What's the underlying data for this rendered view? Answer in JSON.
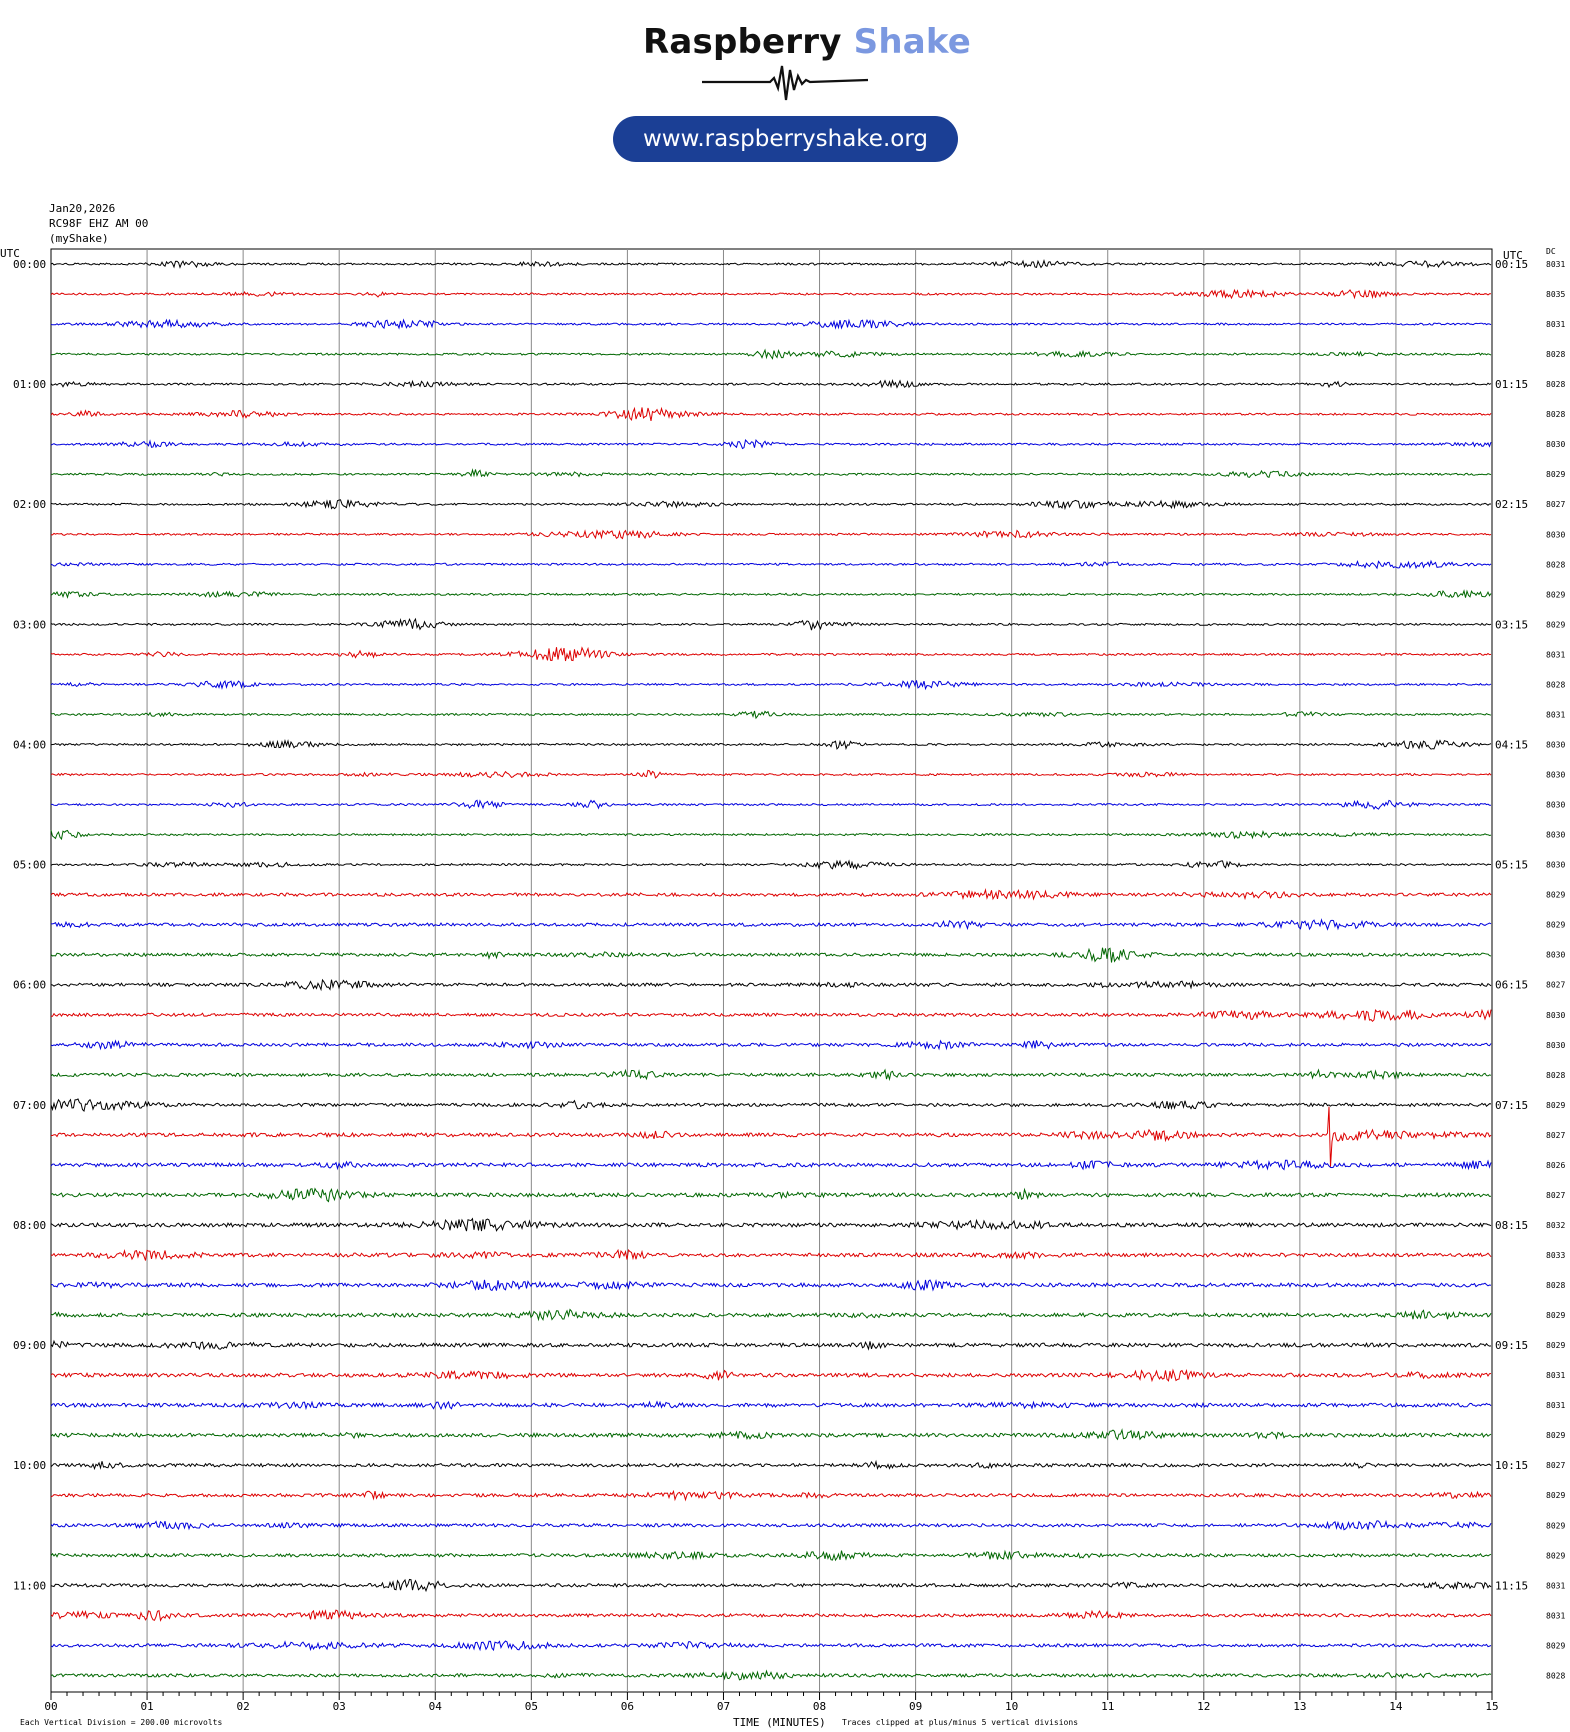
{
  "brand": {
    "name_dark": "Raspberry",
    "name_light": "Shake",
    "url": "www.raspberryshake.org",
    "accent_dark": "#111111",
    "accent_light": "#7b98e0",
    "pill_color": "#1b3f95"
  },
  "header": {
    "date": "Jan20,2026",
    "station": "RC98F EHZ AM 00",
    "source": "(myShake)"
  },
  "chart_data": {
    "type": "line",
    "title": "",
    "xlabel": "TIME (MINUTES)",
    "ylabel": "",
    "x_ticks": [
      "00",
      "01",
      "02",
      "03",
      "04",
      "05",
      "06",
      "07",
      "08",
      "09",
      "10",
      "11",
      "12",
      "13",
      "14",
      "15"
    ],
    "xlim": [
      0,
      15
    ],
    "left_header": "UTC",
    "right_header": "UTC",
    "dc_header": "DC",
    "left_labels": [
      "00:00",
      "01:00",
      "02:00",
      "03:00",
      "04:00",
      "05:00",
      "06:00",
      "07:00",
      "08:00",
      "09:00",
      "10:00",
      "11:00"
    ],
    "right_labels": [
      "00:15",
      "01:15",
      "02:15",
      "03:15",
      "04:15",
      "05:15",
      "06:15",
      "07:15",
      "08:15",
      "09:15",
      "10:15",
      "11:15"
    ],
    "dc_values": [
      "8031",
      "8035",
      "8031",
      "8028",
      "8028",
      "8028",
      "8030",
      "8029",
      "8027",
      "8030",
      "8028",
      "8029",
      "8029",
      "8031",
      "8028",
      "8031",
      "8030",
      "8030",
      "8030",
      "8030",
      "8030",
      "8029",
      "8029",
      "8030",
      "8027",
      "8030",
      "8030",
      "8028",
      "8029",
      "8027",
      "8026",
      "8027",
      "8032",
      "8033",
      "8028",
      "8029",
      "8029",
      "8031",
      "8031",
      "8029",
      "8027",
      "8029",
      "8029",
      "8029",
      "8031",
      "8031",
      "8029",
      "8028"
    ],
    "trace_colors": [
      "#000000",
      "#dd0000",
      "#0000dd",
      "#006600"
    ],
    "trace_minutes": 15,
    "grid": true,
    "footer_left": "Each Vertical Division =  200.00 microvolts",
    "footer_right": "Traces clipped at plus/minus 5 vertical divisions",
    "notable_events": [
      {
        "trace": 29,
        "minute": 13.3,
        "amplitude_divisions": 2.0,
        "label": "07:15 red trace spike"
      }
    ]
  }
}
